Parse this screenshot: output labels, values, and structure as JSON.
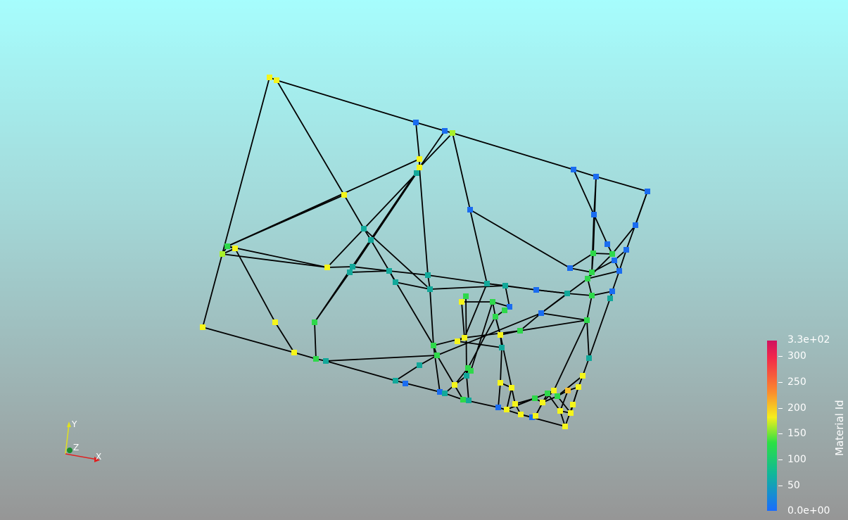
{
  "colorbar": {
    "title": "Material Id",
    "labels": [
      "3.3e+02",
      "300",
      "250",
      "200",
      "150",
      "100",
      "50",
      "0.0e+00"
    ]
  },
  "axes": {
    "x": "X",
    "y": "Y",
    "z": "Z"
  },
  "colors": {
    "edge": "#000000",
    "yellow": "#f5f51a",
    "green": "#2ed84a",
    "teal": "#12a89a",
    "blue": "#1a6cf0",
    "lime": "#a8f02a",
    "orange": "#f7c22e"
  }
}
